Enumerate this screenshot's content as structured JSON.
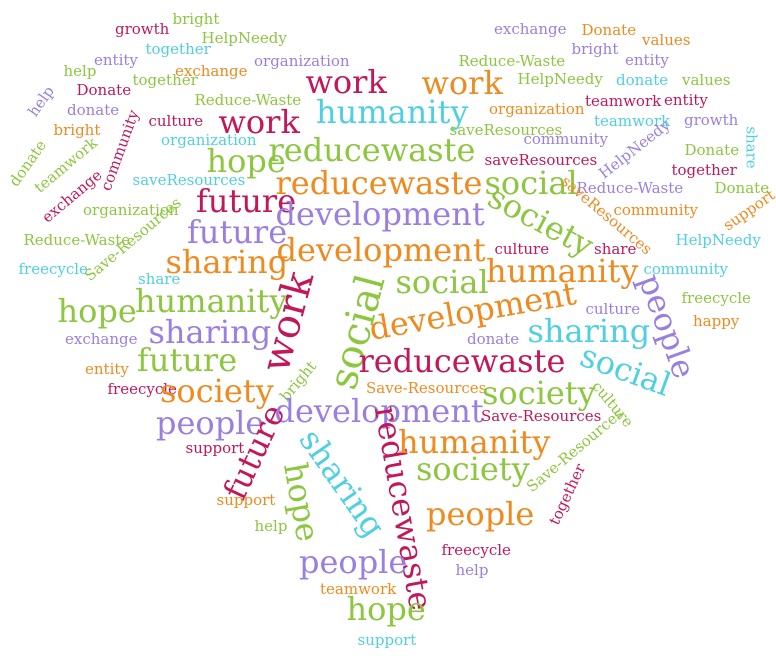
{
  "palette": {
    "magenta": "#c2185b",
    "orange": "#ef8a1f",
    "green": "#8dc63f",
    "purple": "#9b7fe0",
    "cyan": "#4fd0e0"
  },
  "words": [
    {
      "text": "growth",
      "color": "magenta"
    },
    {
      "text": "bright",
      "color": "green"
    },
    {
      "text": "together",
      "color": "cyan"
    },
    {
      "text": "HelpNeedy",
      "color": "green"
    },
    {
      "text": "entity",
      "color": "purple"
    },
    {
      "text": "help",
      "color": "green"
    },
    {
      "text": "exchange",
      "color": "orange"
    },
    {
      "text": "organization",
      "color": "purple"
    },
    {
      "text": "together",
      "color": "green"
    },
    {
      "text": "exchange",
      "color": "purple"
    },
    {
      "text": "Donate",
      "color": "orange"
    },
    {
      "text": "values",
      "color": "orange"
    },
    {
      "text": "bright",
      "color": "purple"
    },
    {
      "text": "entity",
      "color": "purple"
    },
    {
      "text": "Reduce-Waste",
      "color": "green"
    },
    {
      "text": "HelpNeedy",
      "color": "green"
    },
    {
      "text": "donate",
      "color": "cyan"
    },
    {
      "text": "values",
      "color": "green"
    },
    {
      "text": "Donate",
      "color": "magenta"
    },
    {
      "text": "donate",
      "color": "purple"
    },
    {
      "text": "help",
      "color": "purple"
    },
    {
      "text": "Reduce-Waste",
      "color": "green"
    },
    {
      "text": "work",
      "color": "magenta"
    },
    {
      "text": "work",
      "color": "orange"
    },
    {
      "text": "organization",
      "color": "orange"
    },
    {
      "text": "teamwork",
      "color": "magenta"
    },
    {
      "text": "entity",
      "color": "magenta"
    },
    {
      "text": "bright",
      "color": "orange"
    },
    {
      "text": "culture",
      "color": "magenta"
    },
    {
      "text": "humanity",
      "color": "cyan"
    },
    {
      "text": "work",
      "color": "magenta"
    },
    {
      "text": "saveResources",
      "color": "green"
    },
    {
      "text": "teamwork",
      "color": "cyan"
    },
    {
      "text": "growth",
      "color": "purple"
    },
    {
      "text": "community",
      "color": "magenta"
    },
    {
      "text": "organization",
      "color": "cyan"
    },
    {
      "text": "community",
      "color": "purple"
    },
    {
      "text": "share",
      "color": "cyan"
    },
    {
      "text": "donate",
      "color": "green"
    },
    {
      "text": "hope",
      "color": "green"
    },
    {
      "text": "reducewaste",
      "color": "green"
    },
    {
      "text": "saveResources",
      "color": "magenta"
    },
    {
      "text": "HelpNeedy",
      "color": "purple"
    },
    {
      "text": "Donate",
      "color": "green"
    },
    {
      "text": "teamwork",
      "color": "green"
    },
    {
      "text": "saveResources",
      "color": "cyan"
    },
    {
      "text": "reducewaste",
      "color": "orange"
    },
    {
      "text": "social",
      "color": "green"
    },
    {
      "text": "together",
      "color": "magenta"
    },
    {
      "text": "exchange",
      "color": "magenta"
    },
    {
      "text": "Reduce-Waste",
      "color": "purple"
    },
    {
      "text": "Donate",
      "color": "green"
    },
    {
      "text": "future",
      "color": "magenta"
    },
    {
      "text": "organization",
      "color": "green"
    },
    {
      "text": "development",
      "color": "purple"
    },
    {
      "text": "society",
      "color": "green"
    },
    {
      "text": "saveResources",
      "color": "orange"
    },
    {
      "text": "community",
      "color": "orange"
    },
    {
      "text": "support",
      "color": "orange"
    },
    {
      "text": "future",
      "color": "purple"
    },
    {
      "text": "Reduce-Waste",
      "color": "green"
    },
    {
      "text": "Save-Resources",
      "color": "green"
    },
    {
      "text": "HelpNeedy",
      "color": "cyan"
    },
    {
      "text": "development",
      "color": "orange"
    },
    {
      "text": "culture",
      "color": "magenta"
    },
    {
      "text": "share",
      "color": "magenta"
    },
    {
      "text": "sharing",
      "color": "orange"
    },
    {
      "text": "freecycle",
      "color": "cyan"
    },
    {
      "text": "humanity",
      "color": "orange"
    },
    {
      "text": "community",
      "color": "cyan"
    },
    {
      "text": "social",
      "color": "green"
    },
    {
      "text": "share",
      "color": "cyan"
    },
    {
      "text": "humanity",
      "color": "green"
    },
    {
      "text": "people",
      "color": "purple"
    },
    {
      "text": "hope",
      "color": "green"
    },
    {
      "text": "development",
      "color": "orange"
    },
    {
      "text": "culture",
      "color": "purple"
    },
    {
      "text": "freecycle",
      "color": "green"
    },
    {
      "text": "work",
      "color": "magenta"
    },
    {
      "text": "social",
      "color": "green"
    },
    {
      "text": "sharing",
      "color": "cyan"
    },
    {
      "text": "happy",
      "color": "orange"
    },
    {
      "text": "sharing",
      "color": "purple"
    },
    {
      "text": "exchange",
      "color": "purple"
    },
    {
      "text": "donate",
      "color": "purple"
    },
    {
      "text": "future",
      "color": "green"
    },
    {
      "text": "reducewaste",
      "color": "magenta"
    },
    {
      "text": "social",
      "color": "cyan"
    },
    {
      "text": "entity",
      "color": "orange"
    },
    {
      "text": "freecycle",
      "color": "magenta"
    },
    {
      "text": "bright",
      "color": "green"
    },
    {
      "text": "society",
      "color": "orange"
    },
    {
      "text": "Save-Resources",
      "color": "orange"
    },
    {
      "text": "society",
      "color": "green"
    },
    {
      "text": "culture",
      "color": "green"
    },
    {
      "text": "people",
      "color": "purple"
    },
    {
      "text": "development",
      "color": "purple"
    },
    {
      "text": "Save-Resources",
      "color": "magenta"
    },
    {
      "text": "support",
      "color": "magenta"
    },
    {
      "text": "future",
      "color": "magenta"
    },
    {
      "text": "sharing",
      "color": "cyan"
    },
    {
      "text": "reducewaste",
      "color": "magenta"
    },
    {
      "text": "humanity",
      "color": "orange"
    },
    {
      "text": "Save-Resources",
      "color": "green"
    },
    {
      "text": "hope",
      "color": "green"
    },
    {
      "text": "society",
      "color": "green"
    },
    {
      "text": "support",
      "color": "orange"
    },
    {
      "text": "people",
      "color": "orange"
    },
    {
      "text": "together",
      "color": "magenta"
    },
    {
      "text": "help",
      "color": "green"
    },
    {
      "text": "people",
      "color": "purple"
    },
    {
      "text": "freecycle",
      "color": "magenta"
    },
    {
      "text": "help",
      "color": "purple"
    },
    {
      "text": "teamwork",
      "color": "orange"
    },
    {
      "text": "hope",
      "color": "green"
    },
    {
      "text": "support",
      "color": "cyan"
    }
  ]
}
